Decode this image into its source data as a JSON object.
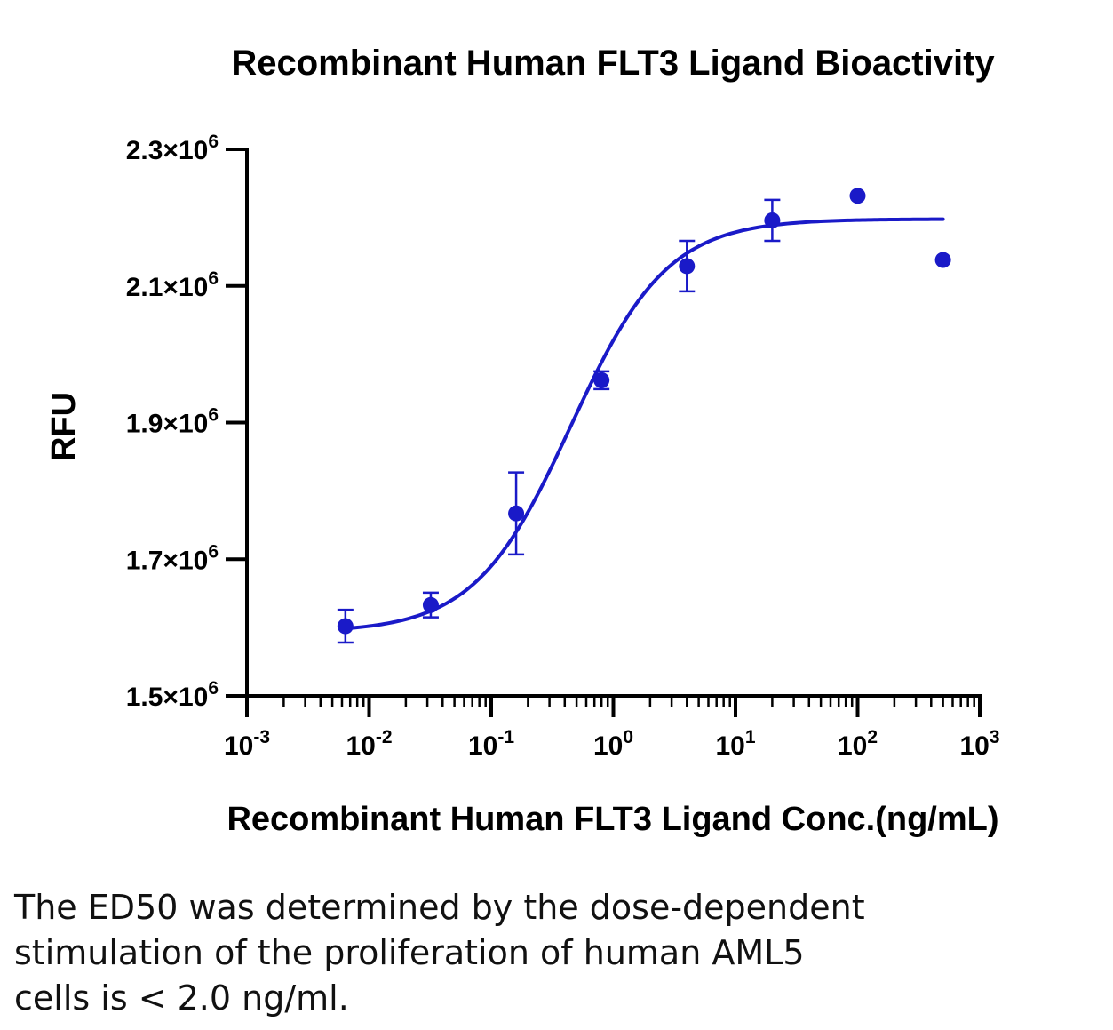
{
  "chart_data": {
    "type": "scatter",
    "title": "Recombinant Human FLT3 Ligand Bioactivity",
    "xlabel": "Recombinant Human FLT3 Ligand Conc.(ng/mL)",
    "ylabel": "RFU",
    "x_scale": "log10",
    "xlim": [
      0.001,
      1000
    ],
    "ylim": [
      1500000,
      2300000
    ],
    "x_ticks": [
      0.001,
      0.01,
      0.1,
      1,
      10,
      100,
      1000
    ],
    "x_tick_labels": [
      {
        "base": "10",
        "exp": "-3"
      },
      {
        "base": "10",
        "exp": "-2"
      },
      {
        "base": "10",
        "exp": "-1"
      },
      {
        "base": "10",
        "exp": "0"
      },
      {
        "base": "10",
        "exp": "1"
      },
      {
        "base": "10",
        "exp": "2"
      },
      {
        "base": "10",
        "exp": "3"
      }
    ],
    "y_ticks": [
      1500000,
      1700000,
      1900000,
      2100000,
      2300000
    ],
    "y_tick_labels": [
      {
        "base": "1.5×10",
        "exp": "6"
      },
      {
        "base": "1.7×10",
        "exp": "6"
      },
      {
        "base": "1.9×10",
        "exp": "6"
      },
      {
        "base": "2.1×10",
        "exp": "6"
      },
      {
        "base": "2.3×10",
        "exp": "6"
      }
    ],
    "color": "#1a1ac8",
    "series": [
      {
        "points": [
          {
            "x": 0.0064,
            "y": 1602000,
            "err": 24000
          },
          {
            "x": 0.032,
            "y": 1633000,
            "err": 18000
          },
          {
            "x": 0.16,
            "y": 1767000,
            "err": 60000
          },
          {
            "x": 0.8,
            "y": 1962000,
            "err": 13000
          },
          {
            "x": 4.0,
            "y": 2129000,
            "err": 37000
          },
          {
            "x": 20.0,
            "y": 2196000,
            "err": 30000
          },
          {
            "x": 100.0,
            "y": 2232000,
            "err": 0
          },
          {
            "x": 500.0,
            "y": 2138000,
            "err": 0
          }
        ],
        "fit": {
          "model": "4PL",
          "bottom": 1593000,
          "top": 2198000,
          "ec50": 0.45,
          "hill": 1.1
        }
      }
    ]
  },
  "caption": {
    "lines": [
      "The ED50 was determined by the dose-dependent",
      "stimulation of the proliferation of human AML5",
      "cells is < 2.0 ng/ml."
    ]
  }
}
